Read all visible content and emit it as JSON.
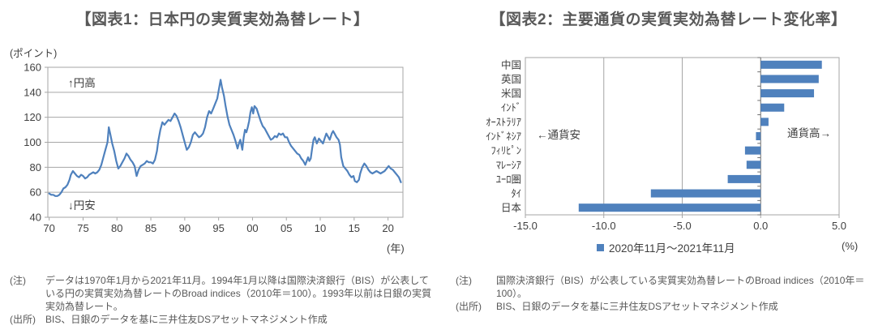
{
  "colors": {
    "accent": "#4F81BD",
    "title_text": "#595959",
    "axis_text": "#404040",
    "gridline": "#A6A6A6",
    "plot_border": "#A6A6A6",
    "zero_axis": "#6E6E6E",
    "note_text": "#595959"
  },
  "figure1": {
    "title": "【図表1：日本円の実質実効為替レート】",
    "y_axis_unit": "(ポイント)",
    "x_axis_unit": "(年)",
    "annotation_strong": "↑円高",
    "annotation_weak": "↓円安",
    "note_label": "(注)",
    "note_text": "データは1970年1月から2021年11月。1994年1月以降は国際決済銀行（BIS）が公表している円の実質実効為替レートのBroad indices（2010年＝100）。1993年以前は日銀の実質実効為替レート。",
    "source_label": "(出所)",
    "source_text": "BIS、日銀のデータを基に三井住友DSアセットマネジメント作成",
    "chart_data": {
      "type": "line",
      "title": "日本円の実質実効為替レート",
      "xlabel": "年",
      "ylabel": "ポイント",
      "ylim": [
        40,
        160
      ],
      "yticks": [
        40,
        60,
        80,
        100,
        120,
        140,
        160
      ],
      "xlim": [
        1969.8,
        2022.2
      ],
      "xticks": [
        {
          "year": 1970,
          "label": "70"
        },
        {
          "year": 1975,
          "label": "75"
        },
        {
          "year": 1980,
          "label": "80"
        },
        {
          "year": 1985,
          "label": "85"
        },
        {
          "year": 1990,
          "label": "90"
        },
        {
          "year": 1995,
          "label": "95"
        },
        {
          "year": 2000,
          "label": "00"
        },
        {
          "year": 2005,
          "label": "05"
        },
        {
          "year": 2010,
          "label": "10"
        },
        {
          "year": 2015,
          "label": "15"
        },
        {
          "year": 2020,
          "label": "20"
        }
      ],
      "grid": true,
      "line_color": "#4F81BD",
      "points": [
        [
          1970.0,
          59
        ],
        [
          1970.3,
          58
        ],
        [
          1970.6,
          58
        ],
        [
          1970.9,
          57
        ],
        [
          1971.2,
          57
        ],
        [
          1971.5,
          58
        ],
        [
          1971.8,
          60
        ],
        [
          1972.1,
          63
        ],
        [
          1972.4,
          64
        ],
        [
          1972.7,
          66
        ],
        [
          1973.0,
          70
        ],
        [
          1973.2,
          74
        ],
        [
          1973.5,
          77
        ],
        [
          1973.8,
          75
        ],
        [
          1974.1,
          73
        ],
        [
          1974.4,
          72
        ],
        [
          1974.7,
          74
        ],
        [
          1975.0,
          73
        ],
        [
          1975.3,
          71
        ],
        [
          1975.6,
          72
        ],
        [
          1975.9,
          74
        ],
        [
          1976.2,
          75
        ],
        [
          1976.5,
          76
        ],
        [
          1976.8,
          75
        ],
        [
          1977.1,
          76
        ],
        [
          1977.4,
          78
        ],
        [
          1977.7,
          82
        ],
        [
          1978.0,
          88
        ],
        [
          1978.3,
          94
        ],
        [
          1978.6,
          100
        ],
        [
          1978.8,
          112
        ],
        [
          1979.0,
          107
        ],
        [
          1979.3,
          99
        ],
        [
          1979.6,
          93
        ],
        [
          1979.9,
          85
        ],
        [
          1980.2,
          79
        ],
        [
          1980.5,
          81
        ],
        [
          1980.8,
          84
        ],
        [
          1981.1,
          87
        ],
        [
          1981.4,
          91
        ],
        [
          1981.7,
          89
        ],
        [
          1982.0,
          86
        ],
        [
          1982.3,
          84
        ],
        [
          1982.6,
          81
        ],
        [
          1982.9,
          73
        ],
        [
          1983.2,
          78
        ],
        [
          1983.5,
          81
        ],
        [
          1983.8,
          82
        ],
        [
          1984.1,
          83
        ],
        [
          1984.4,
          85
        ],
        [
          1984.7,
          84
        ],
        [
          1985.0,
          84
        ],
        [
          1985.3,
          83
        ],
        [
          1985.6,
          86
        ],
        [
          1985.9,
          93
        ],
        [
          1986.1,
          101
        ],
        [
          1986.4,
          110
        ],
        [
          1986.7,
          116
        ],
        [
          1987.0,
          114
        ],
        [
          1987.3,
          116
        ],
        [
          1987.6,
          118
        ],
        [
          1987.9,
          117
        ],
        [
          1988.2,
          120
        ],
        [
          1988.5,
          123
        ],
        [
          1988.8,
          121
        ],
        [
          1989.1,
          117
        ],
        [
          1989.4,
          112
        ],
        [
          1989.7,
          106
        ],
        [
          1990.0,
          100
        ],
        [
          1990.3,
          94
        ],
        [
          1990.6,
          96
        ],
        [
          1990.9,
          100
        ],
        [
          1991.2,
          106
        ],
        [
          1991.5,
          108
        ],
        [
          1991.8,
          106
        ],
        [
          1992.1,
          104
        ],
        [
          1992.4,
          105
        ],
        [
          1992.7,
          107
        ],
        [
          1993.0,
          112
        ],
        [
          1993.3,
          120
        ],
        [
          1993.6,
          125
        ],
        [
          1993.9,
          123
        ],
        [
          1994.2,
          127
        ],
        [
          1994.5,
          131
        ],
        [
          1994.8,
          135
        ],
        [
          1995.0,
          141
        ],
        [
          1995.3,
          150
        ],
        [
          1995.5,
          144
        ],
        [
          1995.8,
          137
        ],
        [
          1996.0,
          130
        ],
        [
          1996.3,
          121
        ],
        [
          1996.6,
          114
        ],
        [
          1996.9,
          110
        ],
        [
          1997.2,
          106
        ],
        [
          1997.5,
          101
        ],
        [
          1997.8,
          95
        ],
        [
          1998.0,
          99
        ],
        [
          1998.2,
          102
        ],
        [
          1998.5,
          94
        ],
        [
          1998.7,
          104
        ],
        [
          1998.9,
          110
        ],
        [
          1999.1,
          108
        ],
        [
          1999.3,
          112
        ],
        [
          1999.5,
          117
        ],
        [
          1999.7,
          124
        ],
        [
          1999.9,
          128
        ],
        [
          2000.1,
          123
        ],
        [
          2000.3,
          129
        ],
        [
          2000.6,
          127
        ],
        [
          2000.9,
          122
        ],
        [
          2001.2,
          117
        ],
        [
          2001.5,
          113
        ],
        [
          2001.8,
          111
        ],
        [
          2002.1,
          108
        ],
        [
          2002.4,
          105
        ],
        [
          2002.7,
          102
        ],
        [
          2003.0,
          103
        ],
        [
          2003.3,
          105
        ],
        [
          2003.6,
          104
        ],
        [
          2003.9,
          107
        ],
        [
          2004.2,
          106
        ],
        [
          2004.5,
          107
        ],
        [
          2004.8,
          104
        ],
        [
          2005.1,
          104
        ],
        [
          2005.4,
          100
        ],
        [
          2005.7,
          97
        ],
        [
          2006.0,
          95
        ],
        [
          2006.3,
          93
        ],
        [
          2006.6,
          91
        ],
        [
          2006.9,
          90
        ],
        [
          2007.2,
          87
        ],
        [
          2007.5,
          85
        ],
        [
          2007.8,
          82
        ],
        [
          2008.0,
          85
        ],
        [
          2008.2,
          88
        ],
        [
          2008.4,
          85
        ],
        [
          2008.6,
          87
        ],
        [
          2008.8,
          95
        ],
        [
          2009.0,
          102
        ],
        [
          2009.2,
          104
        ],
        [
          2009.5,
          99
        ],
        [
          2009.8,
          103
        ],
        [
          2010.1,
          101
        ],
        [
          2010.4,
          99
        ],
        [
          2010.7,
          104
        ],
        [
          2010.9,
          107
        ],
        [
          2011.1,
          105
        ],
        [
          2011.4,
          102
        ],
        [
          2011.7,
          107
        ],
        [
          2011.9,
          109
        ],
        [
          2012.1,
          107
        ],
        [
          2012.4,
          104
        ],
        [
          2012.7,
          102
        ],
        [
          2012.9,
          98
        ],
        [
          2013.1,
          88
        ],
        [
          2013.4,
          81
        ],
        [
          2013.7,
          79
        ],
        [
          2014.0,
          77
        ],
        [
          2014.3,
          74
        ],
        [
          2014.6,
          72
        ],
        [
          2014.9,
          73
        ],
        [
          2015.1,
          69
        ],
        [
          2015.4,
          68
        ],
        [
          2015.7,
          70
        ],
        [
          2015.9,
          75
        ],
        [
          2016.2,
          80
        ],
        [
          2016.5,
          83
        ],
        [
          2016.8,
          81
        ],
        [
          2017.1,
          78
        ],
        [
          2017.4,
          76
        ],
        [
          2017.7,
          75
        ],
        [
          2018.0,
          76
        ],
        [
          2018.3,
          77
        ],
        [
          2018.6,
          76
        ],
        [
          2018.9,
          75
        ],
        [
          2019.2,
          76
        ],
        [
          2019.5,
          77
        ],
        [
          2019.8,
          79
        ],
        [
          2020.1,
          81
        ],
        [
          2020.4,
          79
        ],
        [
          2020.7,
          78
        ],
        [
          2021.0,
          76
        ],
        [
          2021.3,
          74
        ],
        [
          2021.6,
          72
        ],
        [
          2021.9,
          68
        ]
      ]
    }
  },
  "figure2": {
    "title": "【図表2：主要通貨の実質実効為替レート変化率】",
    "annotation_weak": "←通貨安",
    "annotation_strong": "通貨高→",
    "x_axis_unit": "(%)",
    "legend_label": "2020年11月～2021年11月",
    "note_label": "(注)",
    "note_text": "国際決済銀行（BIS）が公表している実質実効為替レートのBroad indices（2010年＝100）。",
    "source_label": "(出所)",
    "source_text": "BIS、日銀のデータを基に三井住友DSアセットマネジメント作成",
    "chart_data": {
      "type": "bar",
      "orientation": "horizontal",
      "title": "主要通貨の実質実効為替レート変化率",
      "categories": [
        "中国",
        "英国",
        "米国",
        "ｲﾝﾄﾞ",
        "ｵｰｽﾄﾗﾘｱ",
        "ｲﾝﾄﾞﾈｼｱ",
        "ﾌｨﾘﾋﾟﾝ",
        "ﾏﾚｰｼｱ",
        "ﾕｰﾛ圏",
        "ﾀｲ",
        "日本"
      ],
      "values": [
        3.9,
        3.7,
        3.4,
        1.5,
        0.5,
        -0.3,
        -1.0,
        -0.9,
        -2.1,
        -7.0,
        -11.6
      ],
      "xlim": [
        -15,
        5
      ],
      "xticks": [
        "-15.0",
        "-10.0",
        "-5.0",
        "0.0",
        "5.0"
      ],
      "grid": true,
      "legend_position": "bottom",
      "bar_color": "#4F81BD"
    }
  }
}
